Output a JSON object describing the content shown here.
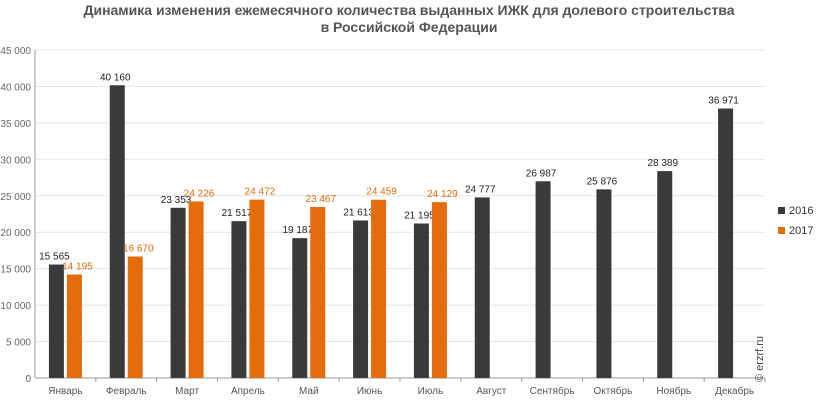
{
  "chart_data": {
    "type": "bar",
    "title": "Динамика изменения ежемесячного количества выданных ИЖК для долевого строительства",
    "subtitle": "в Российской Федерации",
    "categories": [
      "Январь",
      "Февраль",
      "Март",
      "Апрель",
      "Май",
      "Июнь",
      "Июль",
      "Август",
      "Сентябрь",
      "Октябрь",
      "Ноябрь",
      "Декабрь"
    ],
    "series": [
      {
        "name": "2016",
        "color": "#3a3a3a",
        "values": [
          15565,
          40160,
          23353,
          21517,
          19187,
          21613,
          21195,
          24777,
          26987,
          25876,
          28389,
          36971
        ],
        "labels": [
          "15 565",
          "40 160",
          "23 353",
          "21 517",
          "19 187",
          "21 613",
          "21 195",
          "24 777",
          "26 987",
          "25 876",
          "28 389",
          "36 971"
        ]
      },
      {
        "name": "2017",
        "color": "#e46c0a",
        "values": [
          14195,
          16670,
          24226,
          24472,
          23467,
          24459,
          24129,
          null,
          null,
          null,
          null,
          null
        ],
        "labels": [
          "14 195",
          "16 670",
          "24 226",
          "24 472",
          "23 467",
          "24 459",
          "24 129",
          null,
          null,
          null,
          null,
          null
        ]
      }
    ],
    "ylim": [
      0,
      45000
    ],
    "yticks": [
      0,
      5000,
      10000,
      15000,
      20000,
      25000,
      30000,
      35000,
      40000,
      45000
    ],
    "ytick_labels": [
      "0",
      "5 000",
      "10 000",
      "15 000",
      "20 000",
      "25 000",
      "30 000",
      "35 000",
      "40 000",
      "45 000"
    ],
    "grid": true,
    "legend_position": "right",
    "xlabel": "",
    "ylabel": ""
  },
  "watermark": "© erzrf.ru"
}
